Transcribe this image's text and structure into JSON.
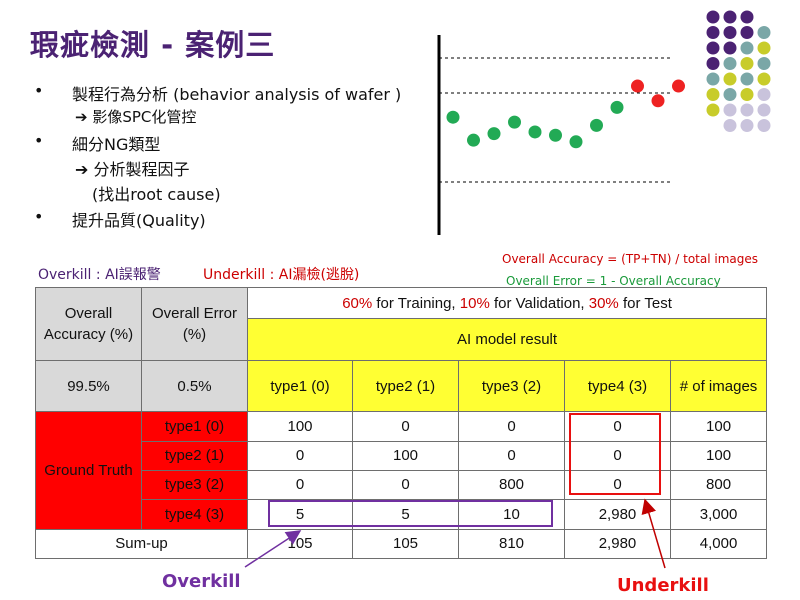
{
  "title": "瑕疵檢測 - 案例三",
  "bullets": {
    "b1": "製程行為分析 (behavior analysis of wafer )",
    "b1_sub": "影像SPC化管控",
    "b2": "細分NG類型",
    "b2_sub1": "分析製程因子",
    "b2_sub2": "(找出root cause)",
    "b3": "提升品質(Quality)",
    "bullet_glyph": "•",
    "arrow_glyph": "➔"
  },
  "formulas": {
    "accuracy": "Overall  Accuracy = (TP+TN) / total images",
    "error": "Overall  Error = 1 - Overall  Accuracy"
  },
  "legend": {
    "overkill": "Overkill : AI誤報警",
    "underkill": "Underkill : AI漏檢(逃脫)"
  },
  "scatter": {
    "points": [
      {
        "x": 1,
        "y": 4.0,
        "color": "#22aa55"
      },
      {
        "x": 2,
        "y": 1.2,
        "color": "#22aa55"
      },
      {
        "x": 3,
        "y": 2.0,
        "color": "#22aa55"
      },
      {
        "x": 4,
        "y": 3.4,
        "color": "#22aa55"
      },
      {
        "x": 5,
        "y": 2.2,
        "color": "#22aa55"
      },
      {
        "x": 6,
        "y": 1.8,
        "color": "#22aa55"
      },
      {
        "x": 7,
        "y": 1.0,
        "color": "#22aa55"
      },
      {
        "x": 8,
        "y": 3.0,
        "color": "#22aa55"
      },
      {
        "x": 9,
        "y": 5.2,
        "color": "#22aa55"
      },
      {
        "x": 10,
        "y": 7.8,
        "color": "#ee2222"
      },
      {
        "x": 11,
        "y": 6.0,
        "color": "#ee2222"
      },
      {
        "x": 12,
        "y": 7.8,
        "color": "#ee2222"
      }
    ]
  },
  "dot_grid": {
    "colors": {
      "purple": "#4b2273",
      "teal": "#7aa7a7",
      "lime": "#c8cc2a",
      "lilac": "#c9c3dc"
    },
    "rows": [
      [
        "purple",
        "purple",
        "purple",
        null
      ],
      [
        "purple",
        "purple",
        "purple",
        "teal"
      ],
      [
        "purple",
        "purple",
        "teal",
        "lime"
      ],
      [
        "purple",
        "teal",
        "lime",
        "teal"
      ],
      [
        "teal",
        "lime",
        "teal",
        "lime"
      ],
      [
        "lime",
        "teal",
        "lime",
        "lilac"
      ],
      [
        "lime",
        "lilac",
        "lilac",
        "lilac"
      ],
      [
        null,
        "lilac",
        "lilac",
        "lilac"
      ]
    ]
  },
  "table": {
    "h_accuracy": "Overall Accuracy (%)",
    "h_error": "Overall Error (%)",
    "split_parts": [
      {
        "t": "60%",
        "c": "#cc0000"
      },
      {
        "t": " for Training, ",
        "c": "#111111"
      },
      {
        "t": "10%",
        "c": "#cc0000"
      },
      {
        "t": " for Validation, ",
        "c": "#111111"
      },
      {
        "t": "30%",
        "c": "#cc0000"
      },
      {
        "t": " for Test",
        "c": "#111111"
      }
    ],
    "model_result": "AI model result",
    "accuracy_value": "99.5%",
    "error_value": "0.5%",
    "col_headers": [
      "type1 (0)",
      "type2 (1)",
      "type3 (2)",
      "type4 (3)",
      "# of images"
    ],
    "ground_truth": "Ground Truth",
    "row_labels": [
      "type1 (0)",
      "type2 (1)",
      "type3 (2)",
      "type4 (3)"
    ],
    "rows": [
      [
        "100",
        "0",
        "0",
        "0",
        "100"
      ],
      [
        "0",
        "100",
        "0",
        "0",
        "100"
      ],
      [
        "0",
        "0",
        "800",
        "0",
        "800"
      ],
      [
        "5",
        "5",
        "10",
        "2,980",
        "3,000"
      ]
    ],
    "sum_label": "Sum-up",
    "sum_row": [
      "105",
      "105",
      "810",
      "2,980",
      "4,000"
    ]
  },
  "annotations": {
    "overkill_label": "Overkill",
    "underkill_label": "Underkill",
    "overkill_color": "#7030a0",
    "underkill_color": "#e81010"
  }
}
